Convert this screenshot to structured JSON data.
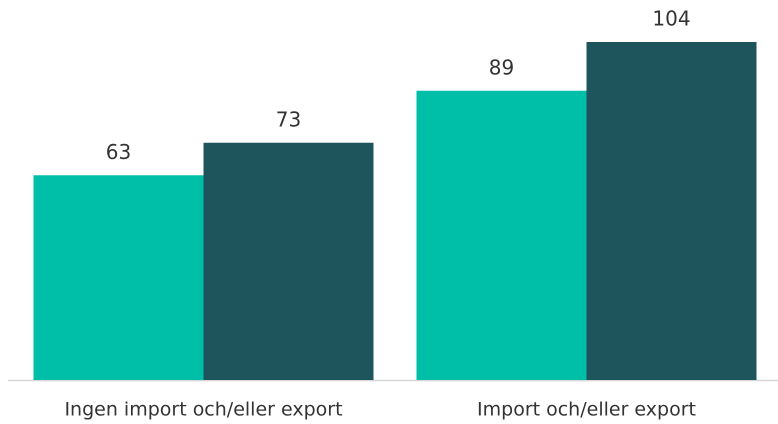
{
  "chart_data": {
    "type": "bar",
    "categories": [
      "Ingen import och/eller export",
      "Import och/eller export"
    ],
    "series": [
      {
        "color": "#00bfa9",
        "values": [
          63,
          89
        ]
      },
      {
        "color": "#1e545c",
        "values": [
          73,
          104
        ]
      }
    ]
  }
}
